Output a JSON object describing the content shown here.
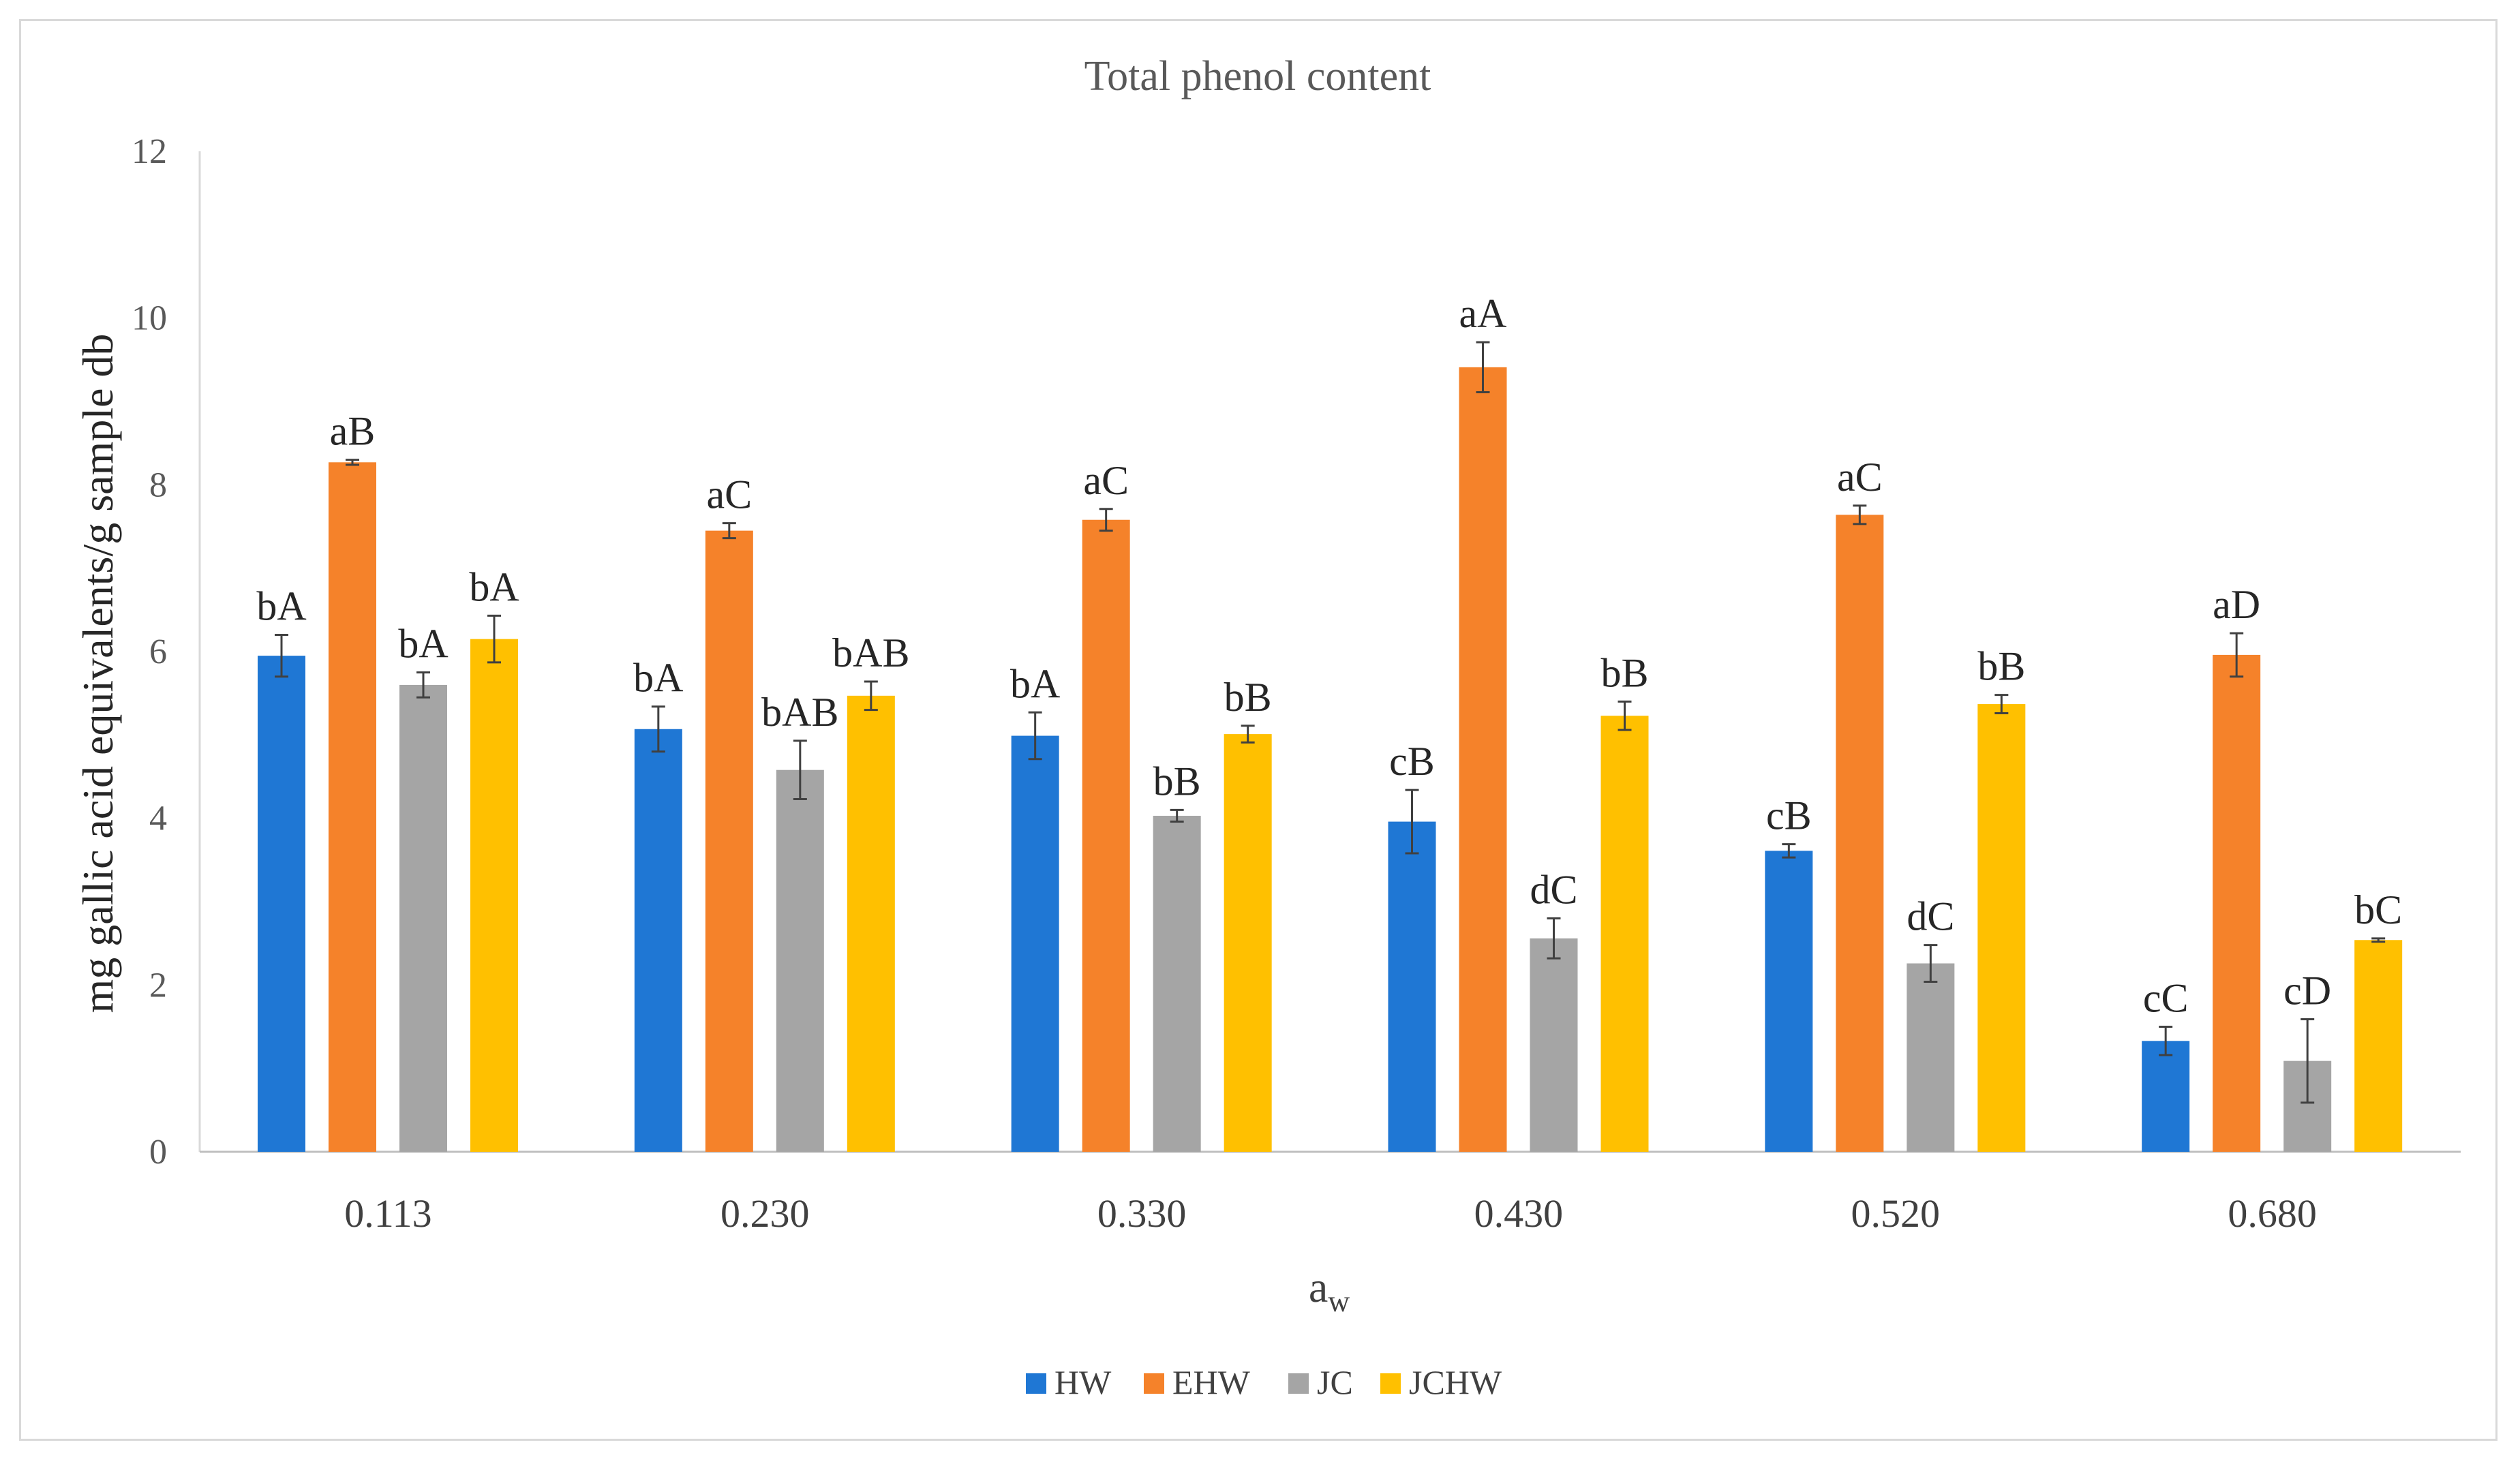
{
  "chart_data": {
    "type": "bar",
    "title": "Total phenol content",
    "ylabel": "mg gallic acid equivalents/g sample db",
    "xlabel_main": "a",
    "xlabel_sub": "w",
    "ylim": [
      0,
      12
    ],
    "yticks": [
      0,
      2,
      4,
      6,
      8,
      10,
      12
    ],
    "legend_position": "bottom",
    "categories": [
      "0.113",
      "0.230",
      "0.330",
      "0.430",
      "0.520",
      "0.680"
    ],
    "series": [
      {
        "name": "HW",
        "color": "#1f77d4",
        "values": [
          5.95,
          5.07,
          4.99,
          3.96,
          3.61,
          1.33
        ],
        "errors": [
          0.25,
          0.27,
          0.28,
          0.38,
          0.08,
          0.17
        ],
        "labels": [
          "bA",
          "bA",
          "bA",
          "cB",
          "cB",
          "cC"
        ]
      },
      {
        "name": "EHW",
        "color": "#f5822a",
        "values": [
          8.27,
          7.45,
          7.58,
          9.41,
          7.64,
          5.96
        ],
        "errors": [
          0.03,
          0.09,
          0.13,
          0.3,
          0.11,
          0.26
        ],
        "labels": [
          "aB",
          "aC",
          "aC",
          "aA",
          "aC",
          "aD"
        ]
      },
      {
        "name": "JC",
        "color": "#a5a5a5",
        "values": [
          5.6,
          4.58,
          4.03,
          2.56,
          2.26,
          1.09
        ],
        "errors": [
          0.15,
          0.35,
          0.07,
          0.24,
          0.22,
          0.5
        ],
        "labels": [
          "bA",
          "bAB",
          "bB",
          "dC",
          "dC",
          "cD"
        ]
      },
      {
        "name": "JCHW",
        "color": "#ffc000",
        "values": [
          6.15,
          5.47,
          5.01,
          5.23,
          5.37,
          2.54
        ],
        "errors": [
          0.28,
          0.17,
          0.1,
          0.17,
          0.11,
          0.02
        ],
        "labels": [
          "bA",
          "bAB",
          "bB",
          "bB",
          "bB",
          "bC"
        ]
      }
    ]
  }
}
